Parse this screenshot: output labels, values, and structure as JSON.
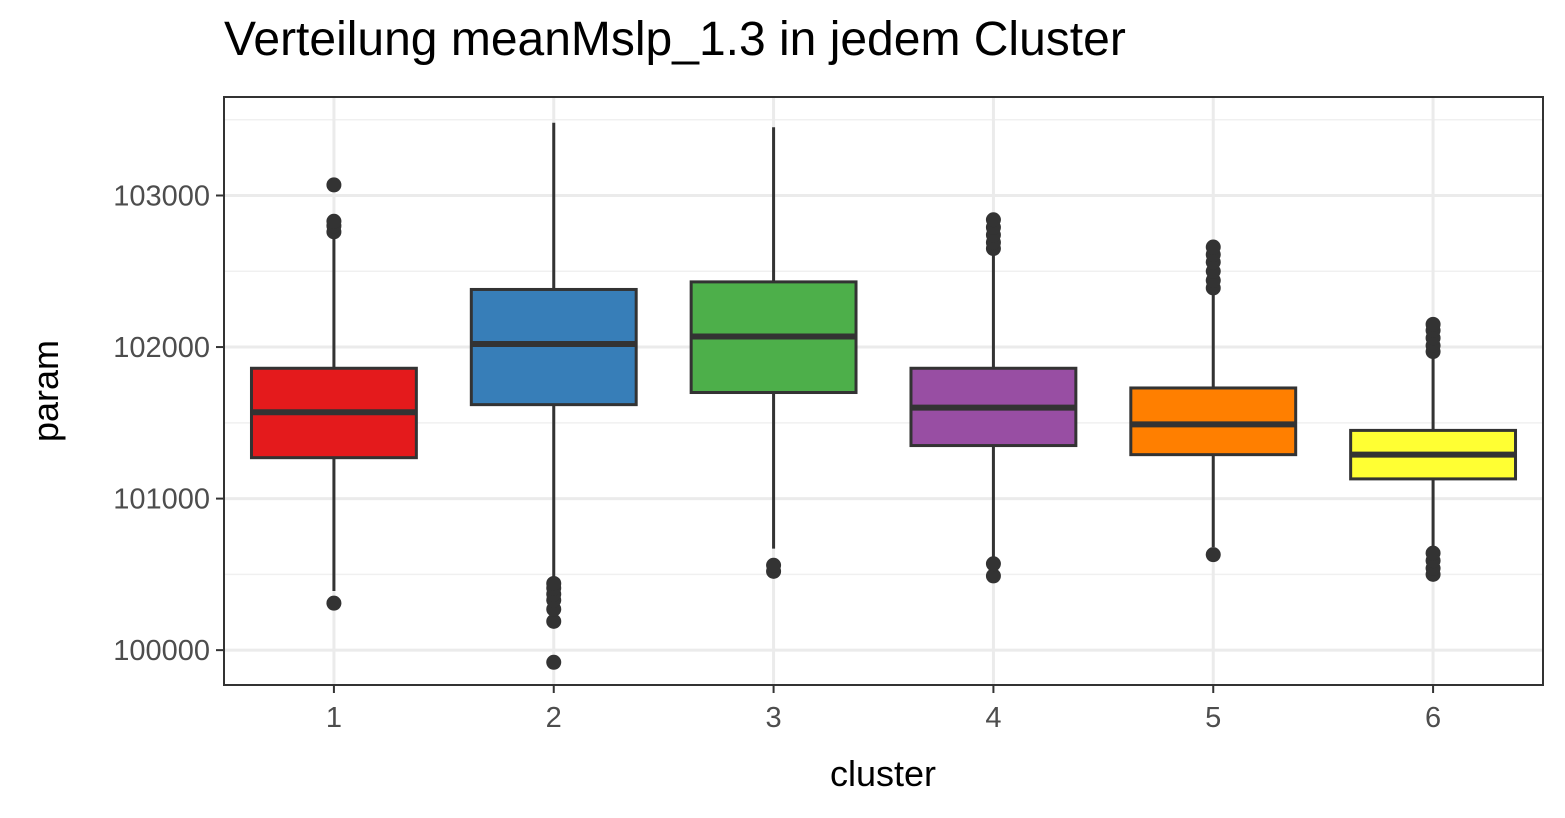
{
  "chart_data": {
    "type": "boxplot",
    "title": "Verteilung meanMslp_1.3 in jedem Cluster",
    "xlabel": "cluster",
    "ylabel": "param",
    "categories": [
      "1",
      "2",
      "3",
      "4",
      "5",
      "6"
    ],
    "ylim": [
      99770,
      103650
    ],
    "yticks": [
      100000,
      101000,
      102000,
      103000
    ],
    "ytick_labels": [
      "100000",
      "101000",
      "102000",
      "103000"
    ],
    "grid": true,
    "legend": "none",
    "colors": [
      "#e41a1c",
      "#377eb8",
      "#4daf4a",
      "#984ea3",
      "#ff7f00",
      "#ffff33"
    ],
    "series": [
      {
        "category": "1",
        "lower_whisker": 100390,
        "q1": 101270,
        "median": 101570,
        "q3": 101860,
        "upper_whisker": 102740,
        "outliers": [
          100310,
          102760,
          102800,
          102830,
          103070
        ]
      },
      {
        "category": "2",
        "lower_whisker": 100450,
        "q1": 101620,
        "median": 102020,
        "q3": 102380,
        "upper_whisker": 103480,
        "outliers": [
          99920,
          100190,
          100270,
          100330,
          100370,
          100410,
          100440
        ]
      },
      {
        "category": "3",
        "lower_whisker": 100670,
        "q1": 101700,
        "median": 102070,
        "q3": 102430,
        "upper_whisker": 103450,
        "outliers": [
          100520,
          100560
        ]
      },
      {
        "category": "4",
        "lower_whisker": 100600,
        "q1": 101350,
        "median": 101600,
        "q3": 101860,
        "upper_whisker": 102630,
        "outliers": [
          100490,
          100570,
          102650,
          102690,
          102740,
          102790,
          102840
        ]
      },
      {
        "category": "5",
        "lower_whisker": 100680,
        "q1": 101290,
        "median": 101490,
        "q3": 101730,
        "upper_whisker": 102360,
        "outliers": [
          100630,
          102390,
          102440,
          102500,
          102560,
          102610,
          102660
        ]
      },
      {
        "category": "6",
        "lower_whisker": 100660,
        "q1": 101130,
        "median": 101290,
        "q3": 101450,
        "upper_whisker": 101940,
        "outliers": [
          100500,
          100540,
          100590,
          100640,
          101970,
          102010,
          102060,
          102110,
          102150
        ]
      }
    ]
  }
}
